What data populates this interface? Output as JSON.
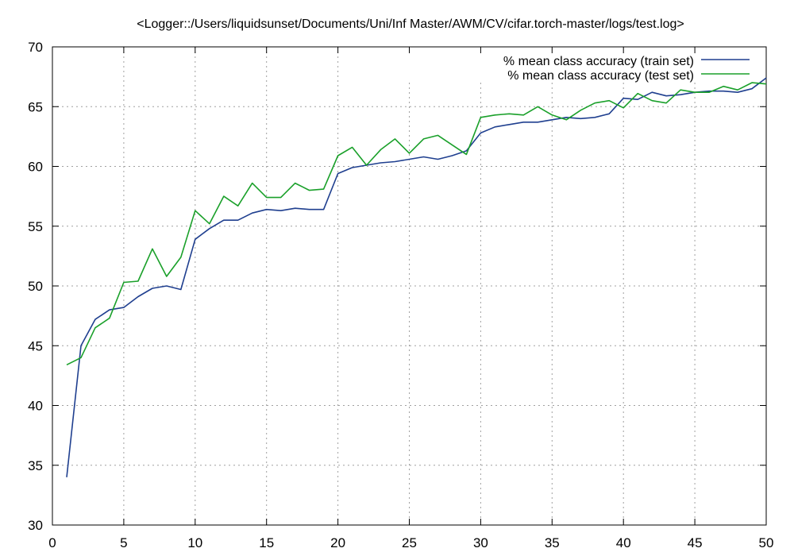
{
  "chart_data": {
    "type": "line",
    "title": "<Logger::/Users/liquidsunset/Documents/Uni/Inf Master/AWM/CV/cifar.torch-master/logs/test.log>",
    "xlabel": "",
    "ylabel": "",
    "xlim": [
      0,
      50
    ],
    "ylim": [
      30,
      70
    ],
    "xticks": [
      0,
      5,
      10,
      15,
      20,
      25,
      30,
      35,
      40,
      45,
      50
    ],
    "yticks": [
      30,
      35,
      40,
      45,
      50,
      55,
      60,
      65,
      70
    ],
    "grid": true,
    "legend_position": "top-right",
    "x": [
      1,
      2,
      3,
      4,
      5,
      6,
      7,
      8,
      9,
      10,
      11,
      12,
      13,
      14,
      15,
      16,
      17,
      18,
      19,
      20,
      21,
      22,
      23,
      24,
      25,
      26,
      27,
      28,
      29,
      30,
      31,
      32,
      33,
      34,
      35,
      36,
      37,
      38,
      39,
      40,
      41,
      42,
      43,
      44,
      45,
      46,
      47,
      48,
      49,
      50
    ],
    "series": [
      {
        "name": "% mean class accuracy (train set)",
        "color": "#1f3f8f",
        "values": [
          34.0,
          45.0,
          47.2,
          48.0,
          48.2,
          49.1,
          49.8,
          50.0,
          49.7,
          53.9,
          54.8,
          55.5,
          55.5,
          56.1,
          56.4,
          56.3,
          56.5,
          56.4,
          56.4,
          59.4,
          59.9,
          60.1,
          60.3,
          60.4,
          60.6,
          60.8,
          60.6,
          60.9,
          61.3,
          62.8,
          63.3,
          63.5,
          63.7,
          63.7,
          63.9,
          64.1,
          64.0,
          64.1,
          64.4,
          65.7,
          65.6,
          66.2,
          65.9,
          66.0,
          66.2,
          66.3,
          66.3,
          66.2,
          66.5,
          67.4
        ]
      },
      {
        "name": "% mean class accuracy (test set)",
        "color": "#1aa02a",
        "values": [
          43.4,
          44.0,
          46.5,
          47.3,
          50.3,
          50.4,
          53.1,
          50.8,
          52.4,
          56.3,
          55.2,
          57.5,
          56.7,
          58.6,
          57.4,
          57.4,
          58.6,
          58.0,
          58.1,
          60.9,
          61.6,
          60.1,
          61.4,
          62.3,
          61.1,
          62.3,
          62.6,
          61.8,
          61.0,
          64.1,
          64.3,
          64.4,
          64.3,
          65.0,
          64.3,
          63.9,
          64.7,
          65.3,
          65.5,
          64.9,
          66.1,
          65.5,
          65.3,
          66.4,
          66.2,
          66.2,
          66.7,
          66.4,
          67.0,
          66.9
        ]
      }
    ]
  }
}
